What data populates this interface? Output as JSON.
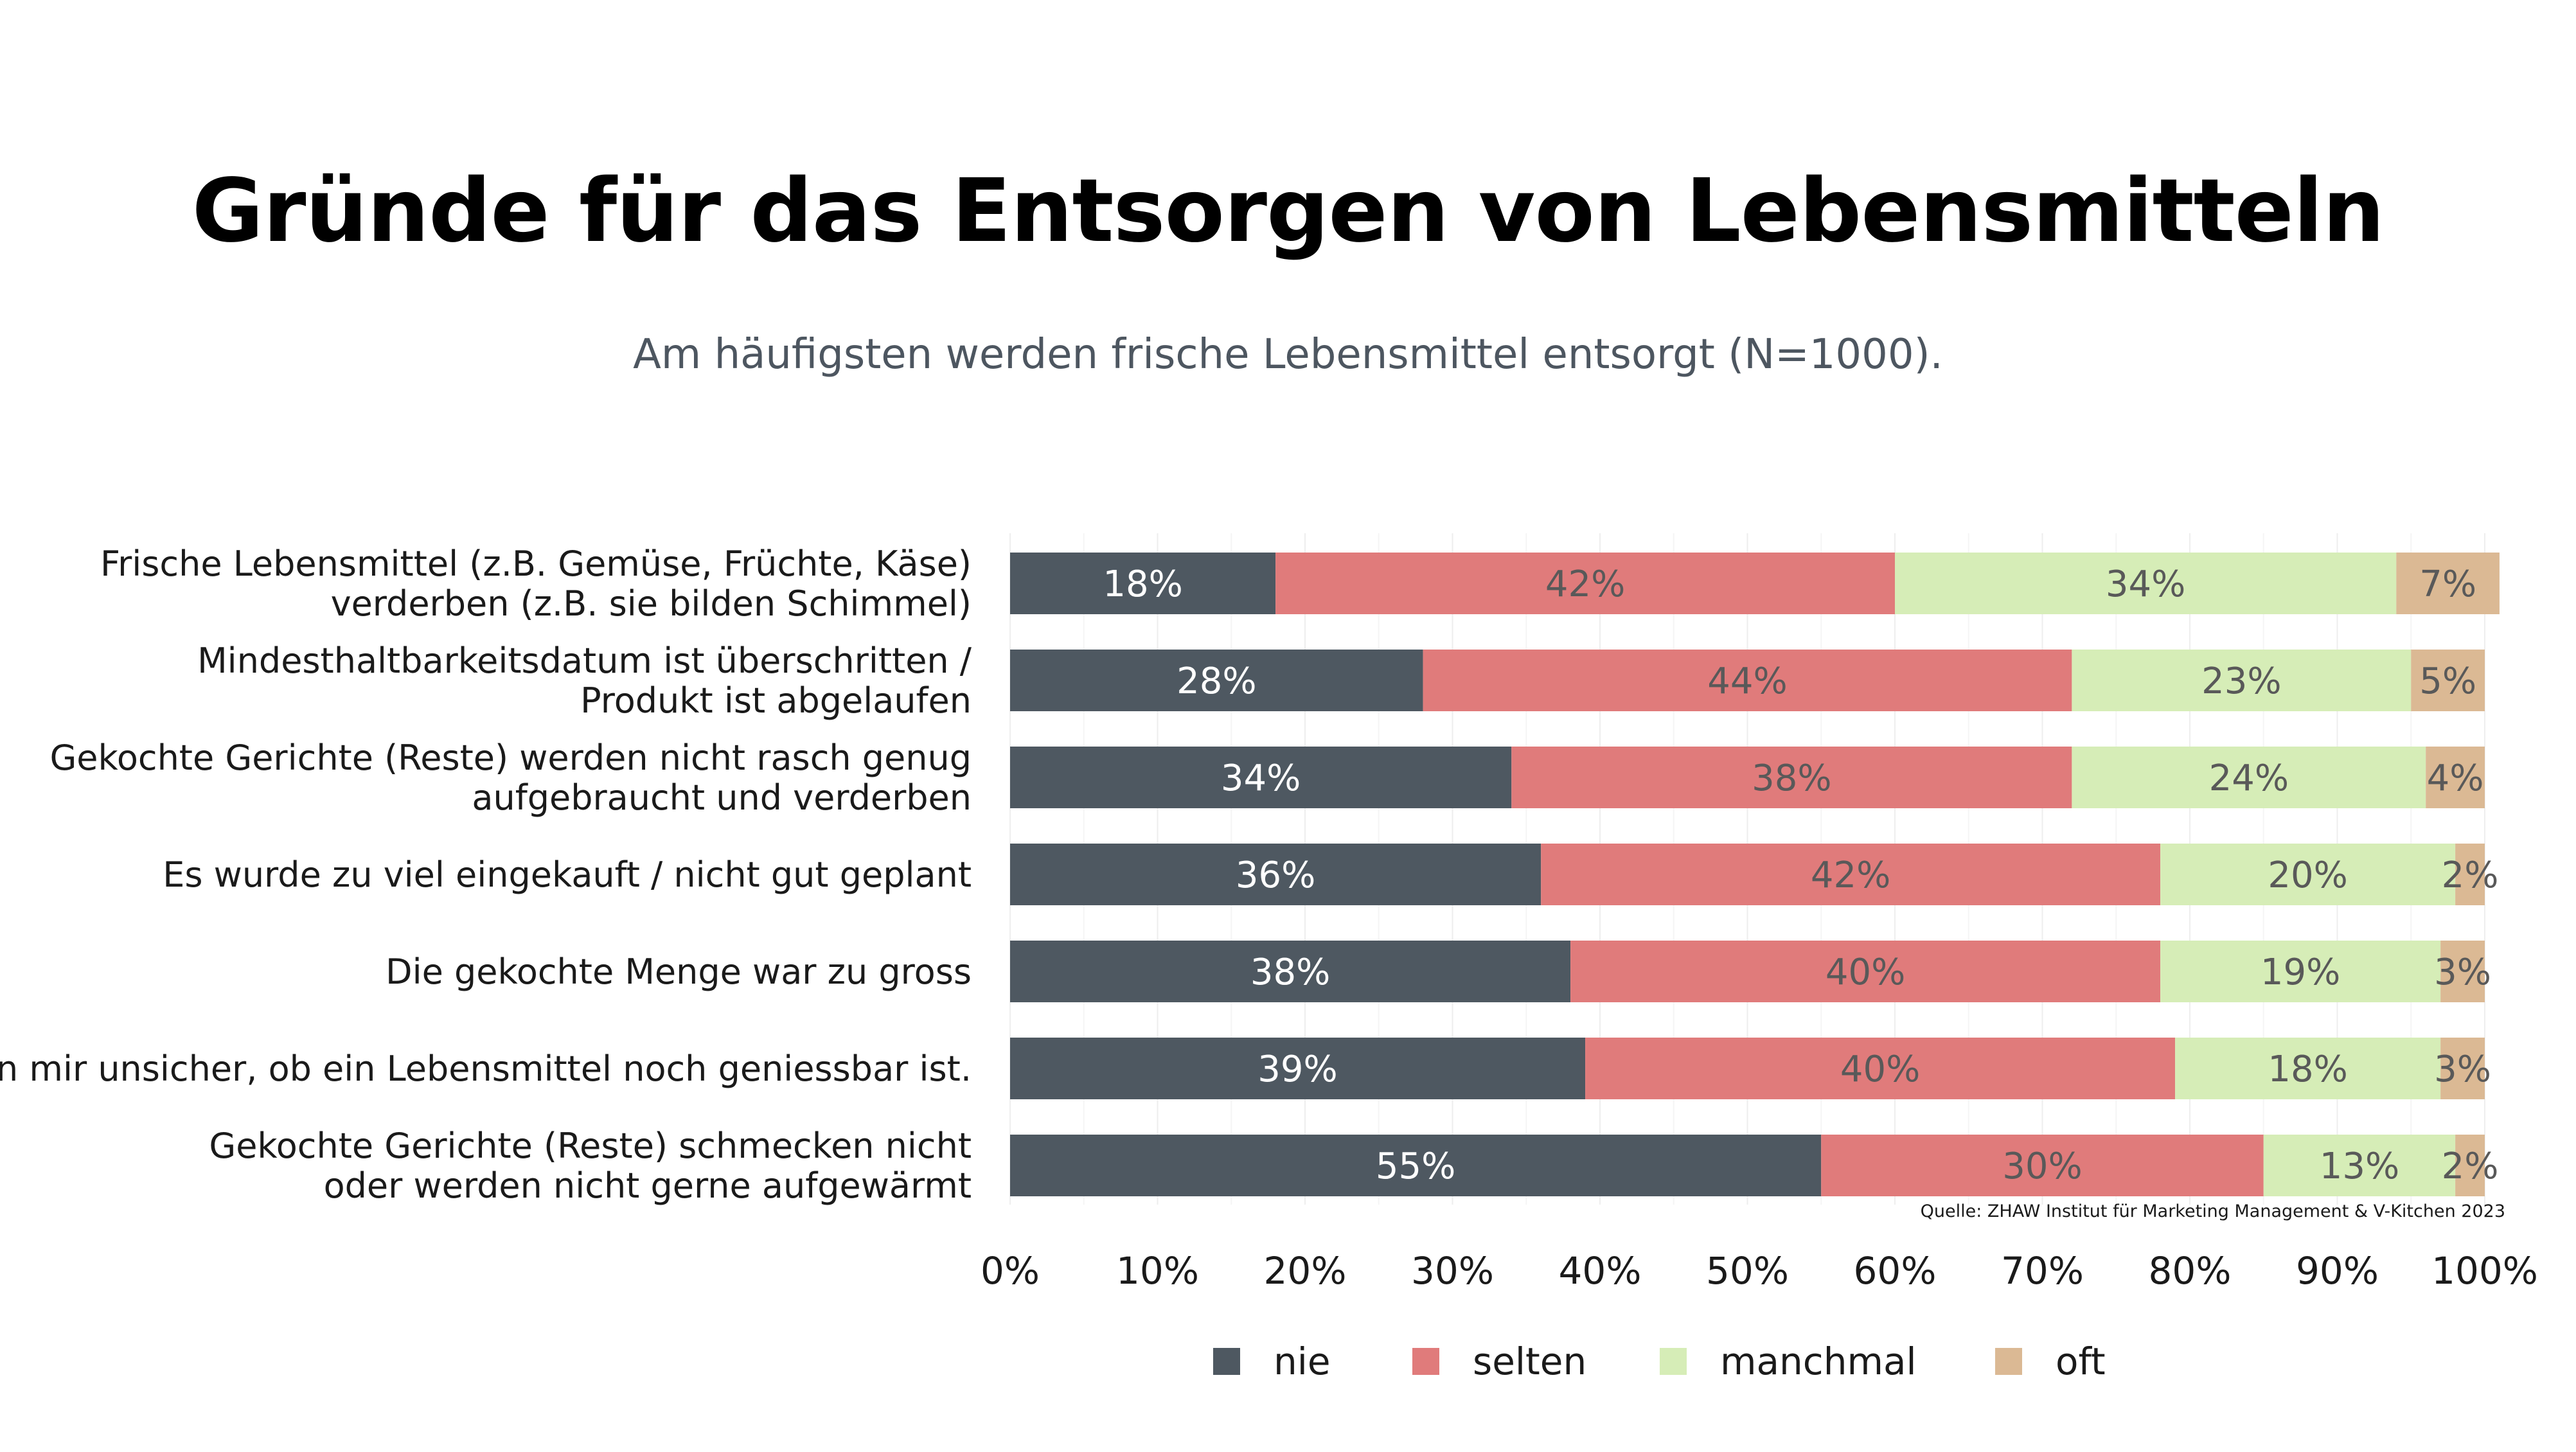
{
  "title": "Gründe für das Entsorgen von Lebensmitteln",
  "subtitle": "Am häufigsten werden frische Lebensmittel entsorgt (N=1000).",
  "source": "Quelle: ZHAW Institut für Marketing Management & V-Kitchen 2023",
  "chart_data": {
    "type": "bar",
    "orientation": "horizontal",
    "stacked": true,
    "title": "Gründe für das Entsorgen von Lebensmitteln",
    "subtitle": "Am häufigsten werden frische Lebensmittel entsorgt (N=1000).",
    "categories": [
      "Frische Lebensmittel (z.B. Gemüse, Früchte, Käse)\nverderben (z.B. sie bilden Schimmel)",
      "Mindesthaltbarkeitsdatum ist überschritten /\nProdukt ist abgelaufen",
      "Gekochte Gerichte (Reste) werden nicht rasch genug\naufgebraucht und verderben",
      "Es wurde zu viel eingekauft / nicht gut geplant",
      "Die gekochte Menge war zu gross",
      "Ich bin mir unsicher, ob ein Lebensmittel noch geniessbar ist.",
      "Gekochte Gerichte (Reste) schmecken nicht\noder werden nicht gerne aufgewärmt"
    ],
    "series": [
      {
        "name": "nie",
        "color": "#4e5861",
        "values": [
          18,
          28,
          34,
          36,
          38,
          39,
          55
        ],
        "labels": [
          "18%",
          "28%",
          "34%",
          "36%",
          "38%",
          "39%",
          "55%"
        ]
      },
      {
        "name": "selten",
        "color": "#e07b7b",
        "values": [
          42,
          44,
          38,
          42,
          40,
          40,
          30
        ],
        "labels": [
          "42%",
          "44%",
          "38%",
          "42%",
          "40%",
          "40%",
          "30%"
        ]
      },
      {
        "name": "manchmal",
        "color": "#d6edb7",
        "values": [
          34,
          23,
          24,
          20,
          19,
          18,
          13
        ],
        "labels": [
          "34%",
          "23%",
          "24%",
          "20%",
          "19%",
          "18%",
          "13%"
        ]
      },
      {
        "name": "oft",
        "color": "#dbb994",
        "values": [
          7,
          5,
          4,
          2,
          3,
          3,
          2
        ],
        "labels": [
          "7%",
          "5%",
          "4%",
          "2%",
          "3%",
          "3%",
          "2%"
        ]
      }
    ],
    "xlim": [
      0,
      100
    ],
    "ticks": [
      0,
      10,
      20,
      30,
      40,
      50,
      60,
      70,
      80,
      90,
      100
    ],
    "tick_labels": [
      "0%",
      "10%",
      "20%",
      "30%",
      "40%",
      "50%",
      "60%",
      "70%",
      "80%",
      "90%",
      "100%"
    ],
    "grid": true,
    "legend_position": "bottom",
    "value_label_colors": {
      "nie": "#ffffff",
      "selten": "#595959",
      "manchmal": "#595959",
      "oft": "#595959"
    }
  }
}
